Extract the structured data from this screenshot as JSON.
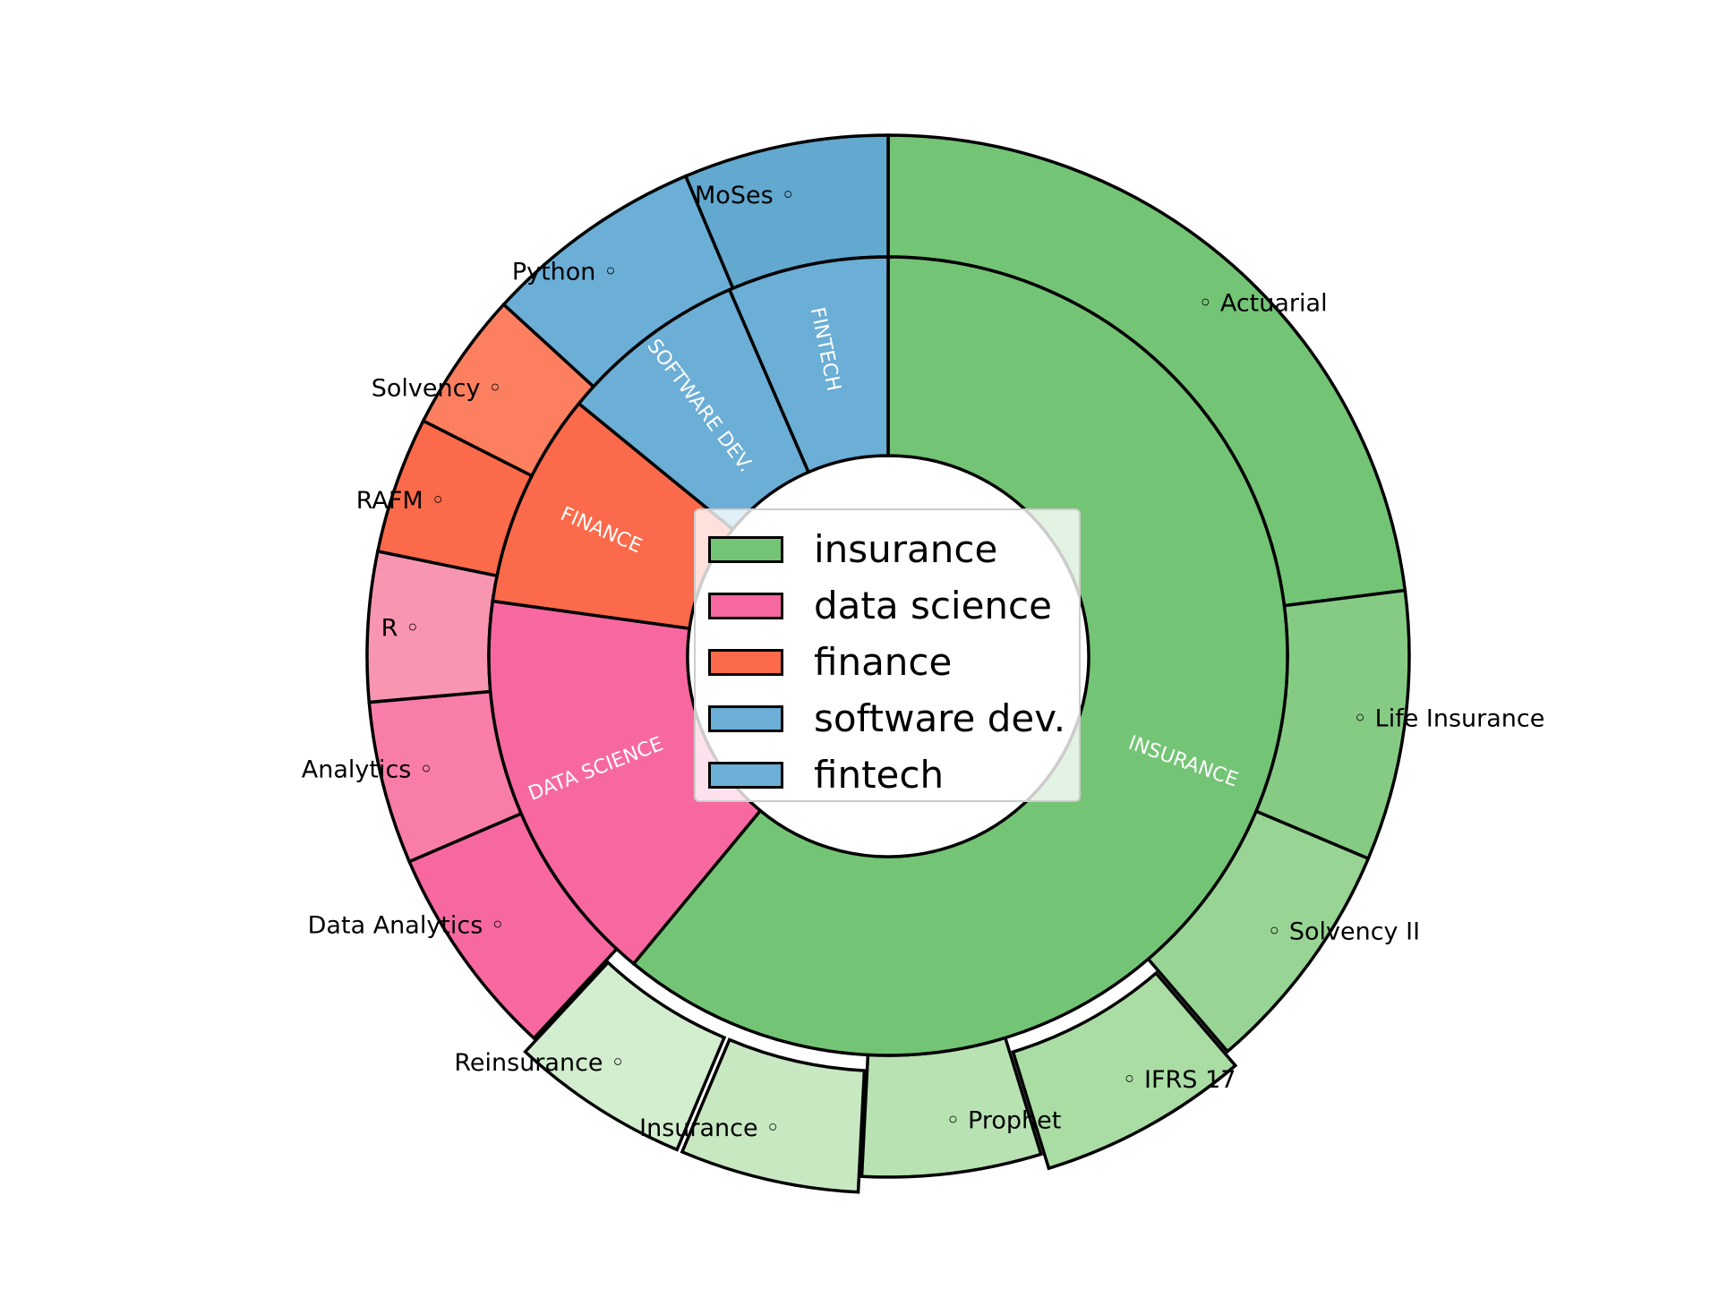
{
  "chart_data": {
    "type": "pie",
    "subtype": "nested-donut",
    "inner_ring": [
      {
        "label": "INSURANCE",
        "category": "insurance",
        "value": 61.0,
        "color": "#74c476"
      },
      {
        "label": "DATA SCIENCE",
        "category": "data science",
        "value": 16.2,
        "color": "#f768a1"
      },
      {
        "label": "FINANCE",
        "category": "finance",
        "value": 8.7,
        "color": "#fb6a4a"
      },
      {
        "label": "SOFTWARE DEV.",
        "category": "software dev.",
        "value": 7.6,
        "color": "#6baed6"
      },
      {
        "label": "FINTECH",
        "category": "fintech",
        "value": 6.5,
        "color": "#6baed6"
      }
    ],
    "outer_ring": [
      {
        "label": "Actuarial",
        "category": "insurance",
        "value": 22.8,
        "color": "#74c476"
      },
      {
        "label": "Life Insurance",
        "category": "insurance",
        "value": 8.3,
        "color": "#86cb84"
      },
      {
        "label": "Solvency II",
        "category": "insurance",
        "value": 7.3,
        "color": "#98d594"
      },
      {
        "label": "IFRS 17",
        "category": "insurance",
        "value": 6.5,
        "color": "#aadda4",
        "exploded": true
      },
      {
        "label": "Prophet",
        "category": "insurance",
        "value": 5.5,
        "color": "#b8e2b2"
      },
      {
        "label": "Insurance",
        "category": "insurance",
        "value": 5.5,
        "color": "#c8e8c2",
        "exploded": true
      },
      {
        "label": "Reinsurance",
        "category": "insurance",
        "value": 5.5,
        "color": "#d3eecf",
        "exploded": true
      },
      {
        "label": "Data Analytics",
        "category": "data science",
        "value": 6.6,
        "color": "#f768a1"
      },
      {
        "label": "Analytics",
        "category": "data science",
        "value": 5.0,
        "color": "#f87ea9"
      },
      {
        "label": "R",
        "category": "data science",
        "value": 4.6,
        "color": "#f896b2"
      },
      {
        "label": "RAFM",
        "category": "finance",
        "value": 4.2,
        "color": "#fb6a4a"
      },
      {
        "label": "Solvency",
        "category": "finance",
        "value": 4.3,
        "color": "#fc7f5f"
      },
      {
        "label": "Python",
        "category": "software dev.",
        "value": 6.8,
        "color": "#6baed6"
      },
      {
        "label": "MoSes",
        "category": "fintech",
        "value": 6.3,
        "color": "#62a8cf"
      }
    ],
    "legend": {
      "position": "center",
      "entries": [
        {
          "label": "insurance",
          "color": "#74c476"
        },
        {
          "label": "data science",
          "color": "#f768a1"
        },
        {
          "label": "finance",
          "color": "#fb6a4a"
        },
        {
          "label": "software dev.",
          "color": "#6baed6"
        },
        {
          "label": "fintech",
          "color": "#6baed6"
        }
      ]
    },
    "start_angle": "12 o'clock",
    "direction": "clockwise"
  }
}
